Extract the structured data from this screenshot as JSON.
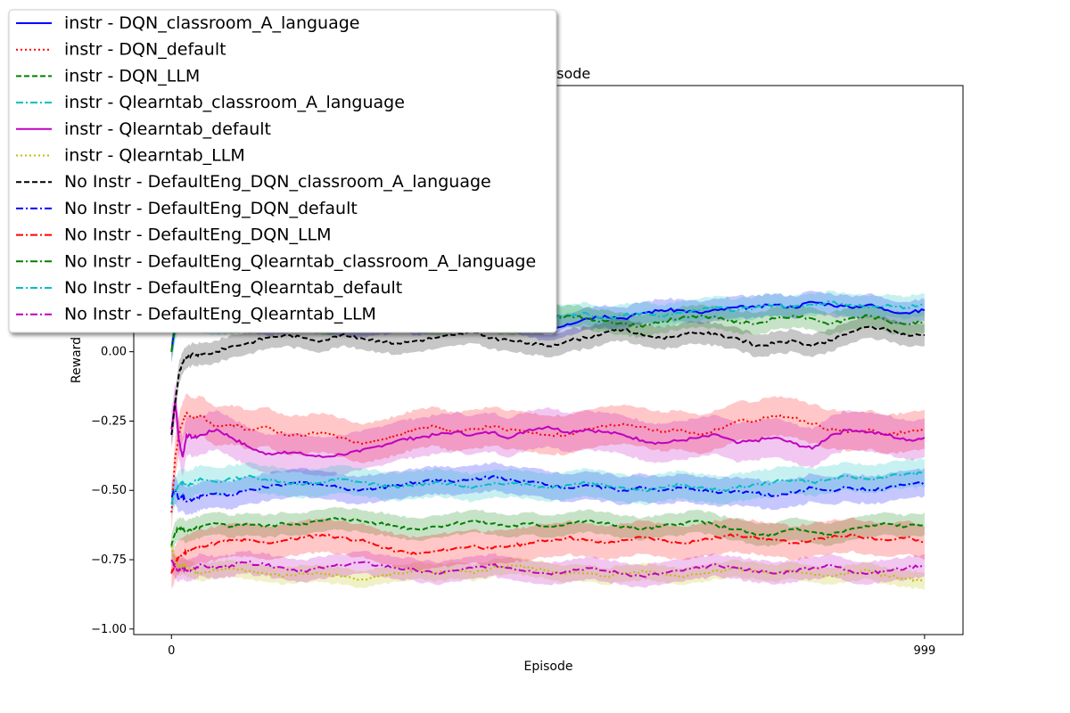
{
  "chart_data": {
    "type": "line",
    "title": "per Episode",
    "xlabel": "Episode",
    "ylabel": "Reward",
    "xlim": [
      -50,
      1050
    ],
    "ylim": [
      -1.02,
      0.96
    ],
    "xticks": [
      0,
      999
    ],
    "xtick_labels": [
      "0",
      "999"
    ],
    "yticks": [
      -1.0,
      -0.75,
      -0.5,
      -0.25,
      0.0
    ],
    "ytick_labels": [
      "−1.00",
      "−0.75",
      "−0.50",
      "−0.25",
      "0.00"
    ],
    "grid": false,
    "legend_position": "top-left",
    "x": [
      0,
      5,
      10,
      15,
      20,
      30,
      40,
      60,
      80,
      100,
      125,
      150,
      175,
      200,
      225,
      250,
      275,
      300,
      325,
      350,
      375,
      400,
      425,
      450,
      475,
      500,
      525,
      550,
      575,
      600,
      625,
      650,
      675,
      700,
      725,
      750,
      775,
      800,
      825,
      850,
      875,
      900,
      925,
      950,
      975,
      999
    ],
    "series": [
      {
        "name": "instr - DQN_classroom_A_language",
        "color": "#0000ff",
        "dash": "solid",
        "band": 0.04,
        "values": [
          0.0,
          0.1,
          0.14,
          0.16,
          0.15,
          0.14,
          0.13,
          0.12,
          0.12,
          0.11,
          0.1,
          0.1,
          0.12,
          0.11,
          0.1,
          0.09,
          0.1,
          0.11,
          0.1,
          0.11,
          0.12,
          0.13,
          0.12,
          0.11,
          0.09,
          0.08,
          0.1,
          0.12,
          0.13,
          0.12,
          0.14,
          0.15,
          0.15,
          0.14,
          0.15,
          0.16,
          0.16,
          0.17,
          0.16,
          0.18,
          0.17,
          0.16,
          0.17,
          0.15,
          0.14,
          0.15
        ]
      },
      {
        "name": "instr - DQN_default",
        "color": "#ff0000",
        "dash": "dotted",
        "band": 0.07,
        "values": [
          -0.58,
          -0.38,
          -0.3,
          -0.25,
          -0.22,
          -0.24,
          -0.23,
          -0.27,
          -0.26,
          -0.28,
          -0.27,
          -0.3,
          -0.3,
          -0.29,
          -0.31,
          -0.33,
          -0.32,
          -0.3,
          -0.28,
          -0.27,
          -0.29,
          -0.28,
          -0.27,
          -0.28,
          -0.29,
          -0.3,
          -0.3,
          -0.28,
          -0.27,
          -0.26,
          -0.27,
          -0.29,
          -0.28,
          -0.3,
          -0.28,
          -0.25,
          -0.25,
          -0.23,
          -0.24,
          -0.26,
          -0.28,
          -0.29,
          -0.28,
          -0.3,
          -0.29,
          -0.28
        ]
      },
      {
        "name": "instr - DQN_LLM",
        "color": "#008000",
        "dash": "dashed",
        "band": 0.04,
        "values": [
          -0.7,
          -0.65,
          -0.64,
          -0.64,
          -0.65,
          -0.64,
          -0.63,
          -0.62,
          -0.63,
          -0.62,
          -0.63,
          -0.62,
          -0.62,
          -0.61,
          -0.6,
          -0.61,
          -0.62,
          -0.63,
          -0.64,
          -0.63,
          -0.62,
          -0.61,
          -0.62,
          -0.63,
          -0.62,
          -0.63,
          -0.62,
          -0.61,
          -0.62,
          -0.63,
          -0.64,
          -0.63,
          -0.62,
          -0.61,
          -0.63,
          -0.64,
          -0.66,
          -0.66,
          -0.64,
          -0.65,
          -0.66,
          -0.64,
          -0.63,
          -0.62,
          -0.63,
          -0.62
        ]
      },
      {
        "name": "instr - Qlearntab_classroom_A_language",
        "color": "#00bfbf",
        "dash": "dashdot",
        "band": 0.04,
        "values": [
          0.0,
          0.08,
          0.12,
          0.14,
          0.13,
          0.12,
          0.11,
          0.1,
          0.12,
          0.13,
          0.12,
          0.13,
          0.14,
          0.13,
          0.12,
          0.13,
          0.14,
          0.15,
          0.14,
          0.13,
          0.12,
          0.13,
          0.12,
          0.11,
          0.12,
          0.14,
          0.13,
          0.14,
          0.12,
          0.13,
          0.14,
          0.13,
          0.14,
          0.15,
          0.16,
          0.15,
          0.16,
          0.17,
          0.16,
          0.17,
          0.18,
          0.17,
          0.16,
          0.17,
          0.16,
          0.17
        ]
      },
      {
        "name": "instr - Qlearntab_default",
        "color": "#bf00bf",
        "dash": "solid",
        "band": 0.07,
        "values": [
          -0.28,
          -0.18,
          -0.32,
          -0.38,
          -0.3,
          -0.31,
          -0.3,
          -0.28,
          -0.31,
          -0.34,
          -0.37,
          -0.36,
          -0.37,
          -0.38,
          -0.37,
          -0.36,
          -0.34,
          -0.32,
          -0.31,
          -0.3,
          -0.29,
          -0.3,
          -0.29,
          -0.31,
          -0.28,
          -0.27,
          -0.29,
          -0.28,
          -0.29,
          -0.3,
          -0.32,
          -0.33,
          -0.32,
          -0.31,
          -0.3,
          -0.33,
          -0.32,
          -0.31,
          -0.33,
          -0.35,
          -0.3,
          -0.28,
          -0.29,
          -0.3,
          -0.32,
          -0.31
        ]
      },
      {
        "name": "instr - Qlearntab_LLM",
        "color": "#bfbf00",
        "dash": "dotted",
        "band": 0.03,
        "values": [
          -0.7,
          -0.76,
          -0.78,
          -0.77,
          -0.78,
          -0.79,
          -0.8,
          -0.79,
          -0.78,
          -0.79,
          -0.8,
          -0.81,
          -0.8,
          -0.8,
          -0.81,
          -0.82,
          -0.81,
          -0.8,
          -0.79,
          -0.8,
          -0.79,
          -0.8,
          -0.78,
          -0.77,
          -0.78,
          -0.79,
          -0.8,
          -0.8,
          -0.81,
          -0.8,
          -0.79,
          -0.8,
          -0.81,
          -0.8,
          -0.79,
          -0.78,
          -0.79,
          -0.8,
          -0.79,
          -0.8,
          -0.81,
          -0.8,
          -0.79,
          -0.81,
          -0.82,
          -0.83
        ]
      },
      {
        "name": "No Instr - DefaultEng_DQN_classroom_A_language",
        "color": "#000000",
        "dash": "dashed",
        "band": 0.04,
        "values": [
          -0.3,
          -0.18,
          -0.08,
          -0.04,
          -0.02,
          -0.01,
          -0.01,
          0.0,
          0.02,
          0.03,
          0.05,
          0.06,
          0.05,
          0.04,
          0.06,
          0.05,
          0.04,
          0.03,
          0.04,
          0.05,
          0.06,
          0.07,
          0.05,
          0.04,
          0.03,
          0.02,
          0.04,
          0.05,
          0.07,
          0.08,
          0.06,
          0.05,
          0.06,
          0.07,
          0.06,
          0.05,
          0.02,
          0.03,
          0.04,
          0.02,
          0.04,
          0.07,
          0.09,
          0.08,
          0.06,
          0.06
        ]
      },
      {
        "name": "No Instr - DefaultEng_DQN_default",
        "color": "#0000ff",
        "dash": "dashdot",
        "band": 0.05,
        "values": [
          -0.52,
          -0.5,
          -0.53,
          -0.52,
          -0.54,
          -0.53,
          -0.52,
          -0.51,
          -0.52,
          -0.5,
          -0.49,
          -0.48,
          -0.47,
          -0.48,
          -0.49,
          -0.5,
          -0.49,
          -0.48,
          -0.47,
          -0.46,
          -0.47,
          -0.46,
          -0.45,
          -0.46,
          -0.47,
          -0.48,
          -0.49,
          -0.48,
          -0.49,
          -0.5,
          -0.49,
          -0.5,
          -0.49,
          -0.5,
          -0.51,
          -0.5,
          -0.51,
          -0.52,
          -0.51,
          -0.49,
          -0.5,
          -0.49,
          -0.5,
          -0.49,
          -0.48,
          -0.47
        ]
      },
      {
        "name": "No Instr - DefaultEng_DQN_LLM",
        "color": "#ff0000",
        "dash": "dashdot",
        "band": 0.06,
        "values": [
          -0.8,
          -0.76,
          -0.74,
          -0.73,
          -0.72,
          -0.71,
          -0.7,
          -0.69,
          -0.68,
          -0.68,
          -0.69,
          -0.68,
          -0.67,
          -0.66,
          -0.67,
          -0.68,
          -0.7,
          -0.72,
          -0.73,
          -0.72,
          -0.71,
          -0.7,
          -0.71,
          -0.7,
          -0.69,
          -0.68,
          -0.67,
          -0.68,
          -0.69,
          -0.68,
          -0.67,
          -0.68,
          -0.69,
          -0.68,
          -0.67,
          -0.66,
          -0.67,
          -0.68,
          -0.69,
          -0.68,
          -0.67,
          -0.66,
          -0.67,
          -0.68,
          -0.67,
          -0.69
        ]
      },
      {
        "name": "No Instr - DefaultEng_Qlearntab_classroom_A_language",
        "color": "#008000",
        "dash": "dashdot",
        "band": 0.04,
        "values": [
          0.0,
          0.1,
          0.13,
          0.15,
          0.14,
          0.13,
          0.12,
          0.11,
          0.1,
          0.11,
          0.12,
          0.11,
          0.12,
          0.1,
          0.11,
          0.12,
          0.13,
          0.12,
          0.11,
          0.1,
          0.11,
          0.12,
          0.11,
          0.1,
          0.11,
          0.12,
          0.13,
          0.12,
          0.11,
          0.1,
          0.09,
          0.11,
          0.12,
          0.13,
          0.12,
          0.11,
          0.1,
          0.12,
          0.13,
          0.12,
          0.1,
          0.12,
          0.13,
          0.11,
          0.1,
          0.11
        ]
      },
      {
        "name": "No Instr - DefaultEng_Qlearntab_default",
        "color": "#00bfbf",
        "dash": "dashdot",
        "band": 0.05,
        "values": [
          -0.55,
          -0.5,
          -0.48,
          -0.47,
          -0.48,
          -0.47,
          -0.46,
          -0.47,
          -0.46,
          -0.45,
          -0.46,
          -0.47,
          -0.48,
          -0.47,
          -0.46,
          -0.47,
          -0.48,
          -0.49,
          -0.48,
          -0.47,
          -0.48,
          -0.49,
          -0.48,
          -0.47,
          -0.48,
          -0.49,
          -0.48,
          -0.47,
          -0.48,
          -0.49,
          -0.5,
          -0.49,
          -0.48,
          -0.49,
          -0.5,
          -0.49,
          -0.48,
          -0.47,
          -0.46,
          -0.47,
          -0.46,
          -0.45,
          -0.46,
          -0.45,
          -0.44,
          -0.44
        ]
      },
      {
        "name": "No Instr - DefaultEng_Qlearntab_LLM",
        "color": "#bf00bf",
        "dash": "dashdot",
        "band": 0.04,
        "values": [
          -0.75,
          -0.78,
          -0.79,
          -0.78,
          -0.79,
          -0.78,
          -0.77,
          -0.78,
          -0.77,
          -0.76,
          -0.77,
          -0.78,
          -0.79,
          -0.78,
          -0.77,
          -0.76,
          -0.77,
          -0.78,
          -0.79,
          -0.8,
          -0.79,
          -0.78,
          -0.77,
          -0.78,
          -0.79,
          -0.8,
          -0.79,
          -0.78,
          -0.79,
          -0.8,
          -0.81,
          -0.8,
          -0.79,
          -0.78,
          -0.77,
          -0.78,
          -0.79,
          -0.8,
          -0.79,
          -0.78,
          -0.77,
          -0.79,
          -0.8,
          -0.79,
          -0.78,
          -0.77
        ]
      }
    ]
  }
}
